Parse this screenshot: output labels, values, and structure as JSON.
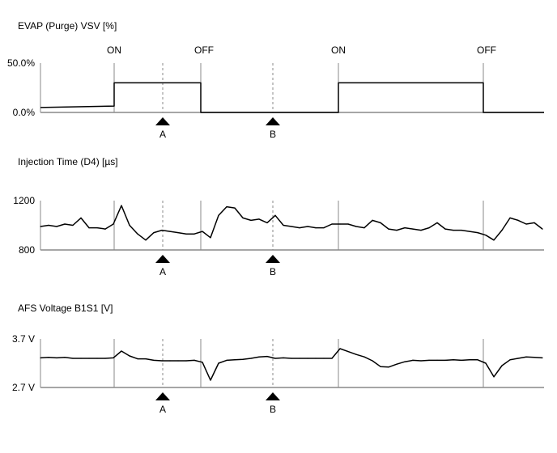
{
  "chart_data": [
    {
      "type": "line",
      "title": "EVAP (Purge) VSV [%]",
      "yticks": [
        "50.0%",
        "0.0%"
      ],
      "ylim": [
        0,
        50
      ],
      "x_range": [
        0,
        62
      ],
      "grid": false,
      "step_points": [
        [
          0,
          5
        ],
        [
          9.1,
          6.5
        ],
        [
          9.1,
          30
        ],
        [
          19.8,
          30
        ],
        [
          19.8,
          0
        ],
        [
          36.8,
          0
        ],
        [
          36.8,
          30
        ],
        [
          54.7,
          30
        ],
        [
          54.7,
          0
        ],
        [
          62.2,
          0
        ]
      ],
      "event_labels": [
        "ON",
        "OFF",
        "ON",
        "OFF"
      ]
    },
    {
      "type": "line",
      "title": "Injection Time (D4) [µs]",
      "yticks": [
        "1200",
        "800"
      ],
      "ylim": [
        800,
        1200
      ],
      "x_range": [
        0,
        62
      ],
      "grid": false,
      "values": [
        990,
        1000,
        990,
        1010,
        1000,
        1060,
        980,
        980,
        970,
        1010,
        1160,
        1000,
        930,
        880,
        940,
        960,
        950,
        940,
        930,
        930,
        950,
        900,
        1080,
        1150,
        1140,
        1060,
        1040,
        1050,
        1020,
        1080,
        1000,
        990,
        980,
        990,
        980,
        980,
        1010,
        1010,
        1010,
        990,
        980,
        1040,
        1020,
        970,
        960,
        980,
        970,
        960,
        980,
        1020,
        970,
        960,
        960,
        950,
        940,
        920,
        880,
        960,
        1060,
        1040,
        1010,
        1020,
        970
      ]
    },
    {
      "type": "line",
      "title": "AFS Voltage B1S1 [V]",
      "yticks": [
        "3.7 V",
        "2.7 V"
      ],
      "ylim": [
        2.7,
        3.7
      ],
      "x_range": [
        0,
        62
      ],
      "grid": false,
      "values": [
        3.31,
        3.32,
        3.31,
        3.32,
        3.3,
        3.3,
        3.3,
        3.3,
        3.3,
        3.31,
        3.45,
        3.35,
        3.29,
        3.29,
        3.26,
        3.25,
        3.25,
        3.25,
        3.25,
        3.26,
        3.22,
        2.85,
        3.2,
        3.26,
        3.27,
        3.28,
        3.3,
        3.33,
        3.34,
        3.3,
        3.31,
        3.3,
        3.3,
        3.3,
        3.3,
        3.3,
        3.3,
        3.5,
        3.44,
        3.38,
        3.33,
        3.25,
        3.13,
        3.12,
        3.18,
        3.23,
        3.26,
        3.25,
        3.26,
        3.26,
        3.26,
        3.27,
        3.26,
        3.27,
        3.27,
        3.2,
        2.92,
        3.15,
        3.27,
        3.3,
        3.33,
        3.32,
        3.31
      ]
    }
  ],
  "events": [
    9.1,
    19.8,
    36.8,
    54.7
  ],
  "markers": [
    {
      "label": "A",
      "x": 15.1
    },
    {
      "label": "B",
      "x": 28.7
    }
  ],
  "colors": {
    "line": "#000000",
    "axis": "#888888",
    "marker": "#000000"
  }
}
